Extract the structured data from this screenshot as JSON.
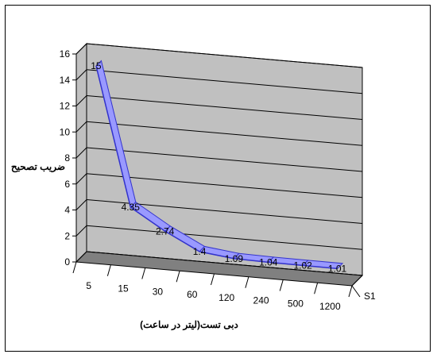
{
  "chart_data": {
    "type": "line",
    "style": "3d-ribbon",
    "categories": [
      "5",
      "15",
      "30",
      "60",
      "120",
      "240",
      "500",
      "1200"
    ],
    "series": [
      {
        "name": "S1",
        "values": [
          15,
          4.35,
          2.74,
          1.4,
          1.09,
          1.04,
          1.02,
          1.01
        ]
      }
    ],
    "data_labels": [
      "15",
      "4.35",
      "2.74",
      "1.4",
      "1.09",
      "1.04",
      "1.02",
      "1.01"
    ],
    "ylabel": "ضریب تصحیح",
    "xlabel": "دبی تست(لیتر در ساعت)",
    "ylim": [
      0,
      16
    ],
    "yticks": [
      "0",
      "2",
      "4",
      "6",
      "8",
      "10",
      "12",
      "14",
      "16"
    ],
    "depth_axis_label": "S1",
    "grid": true,
    "colors": {
      "wall": "#c0c0c0",
      "floor": "#808080",
      "ribbon_fill": "#9999ff",
      "ribbon_edge": "#3333cc",
      "grid": "#000000"
    }
  }
}
